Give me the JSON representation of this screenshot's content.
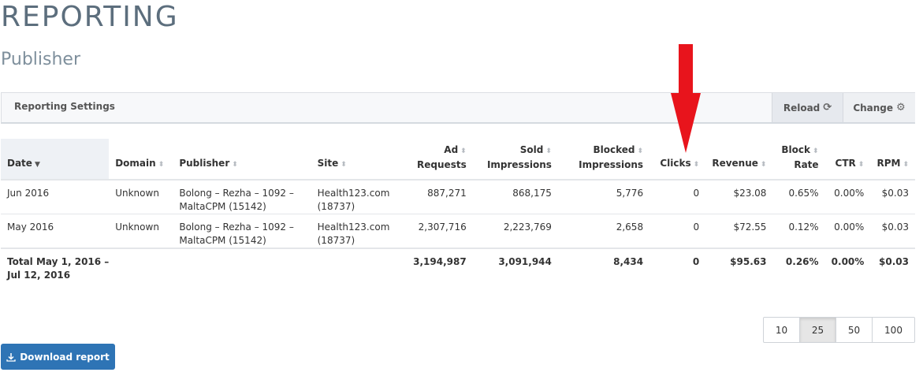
{
  "page": {
    "title": "REPORTING",
    "subtitle": "Publisher"
  },
  "settings": {
    "label": "Reporting Settings",
    "reload_label": "Reload",
    "change_label": "Change"
  },
  "table": {
    "headers": {
      "date": "Date",
      "domain": "Domain",
      "publisher": "Publisher",
      "site": "Site",
      "ad_requests_1": "Ad",
      "ad_requests_2": "Requests",
      "sold_1": "Sold",
      "sold_2": "Impressions",
      "blocked_1": "Blocked",
      "blocked_2": "Impressions",
      "clicks": "Clicks",
      "revenue": "Revenue",
      "block_rate_1": "Block",
      "block_rate_2": "Rate",
      "ctr": "CTR",
      "rpm": "RPM"
    },
    "rows": [
      {
        "date": "Jun 2016",
        "domain": "Unknown",
        "publisher_1": "Bolong – Rezha – 1092 –",
        "publisher_2": "MaltaCPM (15142)",
        "site_1": "Health123.com",
        "site_2": "(18737)",
        "ad_requests": "887,271",
        "sold": "868,175",
        "blocked": "5,776",
        "clicks": "0",
        "revenue": "$23.08",
        "block_rate": "0.65%",
        "ctr": "0.00%",
        "rpm": "$0.03"
      },
      {
        "date": "May 2016",
        "domain": "Unknown",
        "publisher_1": "Bolong – Rezha – 1092 –",
        "publisher_2": "MaltaCPM (15142)",
        "site_1": "Health123.com",
        "site_2": "(18737)",
        "ad_requests": "2,307,716",
        "sold": "2,223,769",
        "blocked": "2,658",
        "clicks": "0",
        "revenue": "$72.55",
        "block_rate": "0.12%",
        "ctr": "0.00%",
        "rpm": "$0.03"
      }
    ],
    "total": {
      "label_1": "Total May 1, 2016 –",
      "label_2": "Jul 12, 2016",
      "ad_requests": "3,194,987",
      "sold": "3,091,944",
      "blocked": "8,434",
      "clicks": "0",
      "revenue": "$95.63",
      "block_rate": "0.26%",
      "ctr": "0.00%",
      "rpm": "$0.03"
    }
  },
  "pagination": {
    "options": [
      "10",
      "25",
      "50",
      "100"
    ],
    "selected": "25"
  },
  "download": {
    "label": "Download report"
  },
  "icons": {
    "reload": "refresh-icon",
    "change": "gear-icon",
    "download": "download-icon",
    "sort": "sort-icon",
    "arrow": "red-arrow-down"
  },
  "colors": {
    "title": "#5c6e7d",
    "download_button": "#2e74b5",
    "annotation_arrow": "#e8141c"
  }
}
